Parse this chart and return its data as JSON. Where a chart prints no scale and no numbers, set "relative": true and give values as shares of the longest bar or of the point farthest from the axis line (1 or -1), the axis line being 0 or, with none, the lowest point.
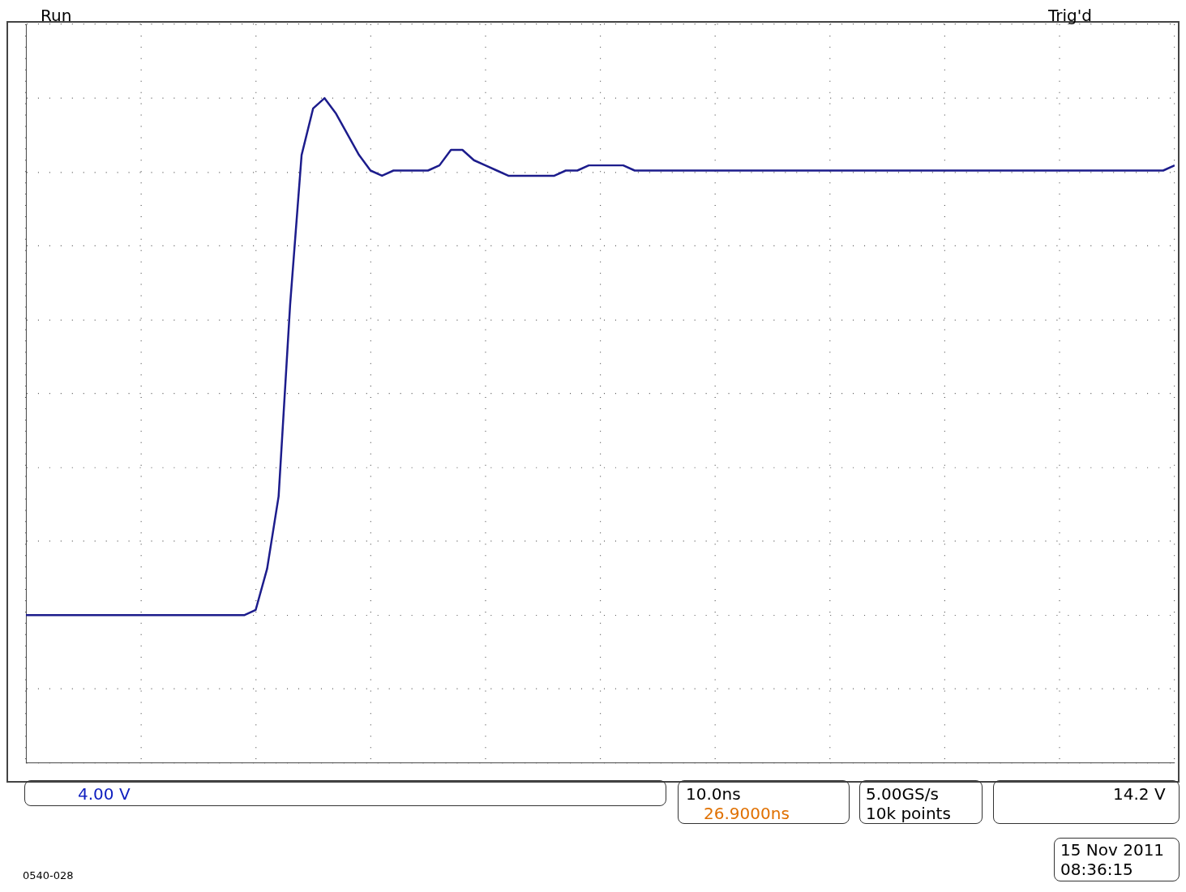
{
  "chart_data": {
    "type": "line",
    "relative": true,
    "grid": true,
    "legend": false,
    "marker": "none",
    "line_style": "solid",
    "categories": [
      null,
      null,
      null,
      null,
      null,
      null,
      null,
      null,
      null,
      null,
      null,
      null,
      null,
      null,
      null,
      null,
      null,
      null,
      null,
      null,
      null,
      null,
      null,
      null,
      null,
      null,
      null,
      null,
      null,
      null,
      null,
      null,
      null,
      null,
      null,
      null,
      null,
      null,
      null,
      null,
      null,
      null,
      null,
      null,
      null,
      null,
      null,
      null,
      null,
      null,
      null,
      null,
      null,
      null,
      null,
      null,
      null,
      null,
      null,
      null,
      null,
      null,
      null,
      null,
      null,
      null,
      null,
      null,
      null,
      null,
      null,
      null,
      null,
      null,
      null,
      null,
      null,
      null,
      null,
      null,
      null,
      null,
      null,
      null,
      null,
      null,
      null,
      null,
      null,
      null,
      null,
      null,
      null,
      null,
      null,
      null,
      null,
      null,
      null,
      null,
      null
    ],
    "series": [
      {
        "color": "#1c1c8c",
        "values": [
          0,
          0,
          0,
          0,
          0,
          0,
          0,
          0,
          0,
          0,
          0,
          0,
          0,
          0,
          0,
          0,
          0,
          0,
          0,
          0,
          0.01,
          0.09,
          0.23,
          0.6,
          0.89,
          0.98,
          1,
          0.97,
          0.93,
          0.89,
          0.86,
          0.85,
          0.86,
          0.86,
          0.86,
          0.86,
          0.87,
          0.9,
          0.9,
          0.88,
          0.87,
          0.86,
          0.85,
          0.85,
          0.85,
          0.85,
          0.85,
          0.86,
          0.86,
          0.87,
          0.87,
          0.87,
          0.87,
          0.86,
          0.86,
          0.86,
          0.86,
          0.86,
          0.86,
          0.86,
          0.86,
          0.86,
          0.86,
          0.86,
          0.86,
          0.86,
          0.86,
          0.86,
          0.86,
          0.86,
          0.86,
          0.86,
          0.86,
          0.86,
          0.86,
          0.86,
          0.86,
          0.86,
          0.86,
          0.86,
          0.86,
          0.86,
          0.86,
          0.86,
          0.86,
          0.86,
          0.86,
          0.86,
          0.86,
          0.86,
          0.86,
          0.86,
          0.86,
          0.86,
          0.86,
          0.86,
          0.86,
          0.86,
          0.86,
          0.86,
          0.87
        ]
      }
    ],
    "annotations": [
      "Run",
      "Trig'd",
      "4.00 V",
      "10.0ns",
      "26.9000ns",
      "5.00GS/s",
      "10k points",
      "14.2 V",
      "15 Nov 2011",
      "08:36:15",
      "0540-028"
    ]
  }
}
